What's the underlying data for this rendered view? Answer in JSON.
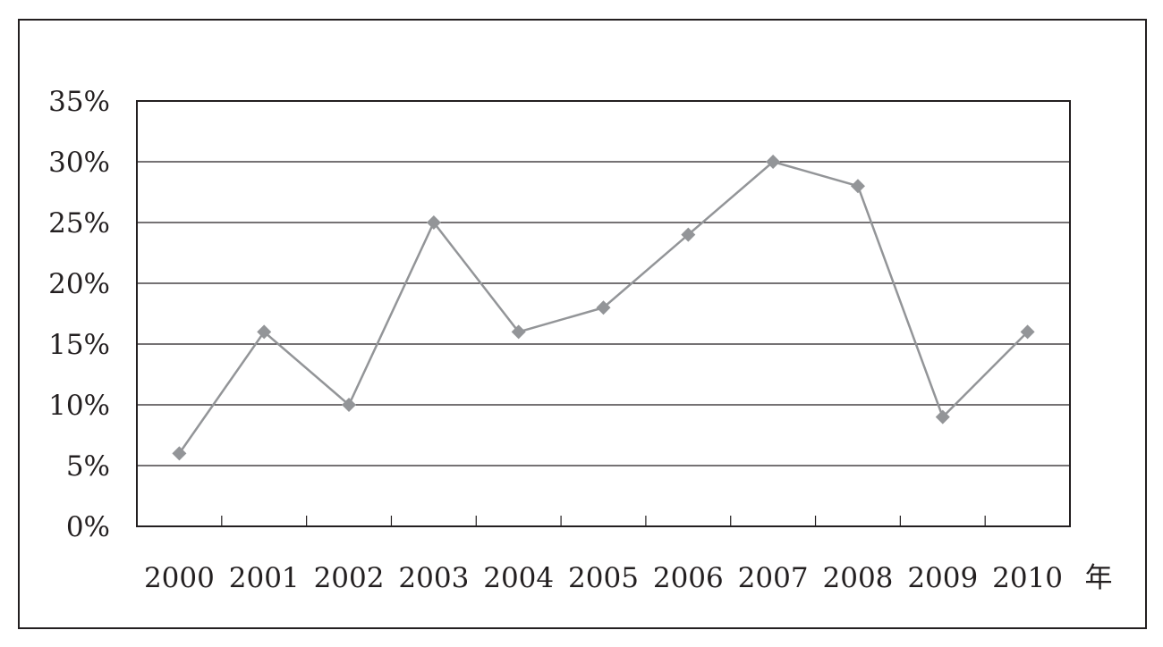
{
  "chart_data": {
    "type": "line",
    "title": "",
    "xlabel": "年",
    "ylabel": "",
    "x": [
      "2000",
      "2001",
      "2002",
      "2003",
      "2004",
      "2005",
      "2006",
      "2007",
      "2008",
      "2009",
      "2010"
    ],
    "series": [
      {
        "values": [
          6,
          16,
          10,
          25,
          16,
          18,
          24,
          30,
          28,
          9,
          16
        ]
      }
    ],
    "y_ticks": [
      "0%",
      "5%",
      "10%",
      "15%",
      "20%",
      "25%",
      "30%",
      "35%"
    ],
    "ylim": [
      0,
      35
    ],
    "grid": true,
    "marker": "diamond",
    "colors": {
      "line": "#939598",
      "marker": "#939598",
      "axis": "#231f20",
      "grid": "#231f20"
    }
  }
}
